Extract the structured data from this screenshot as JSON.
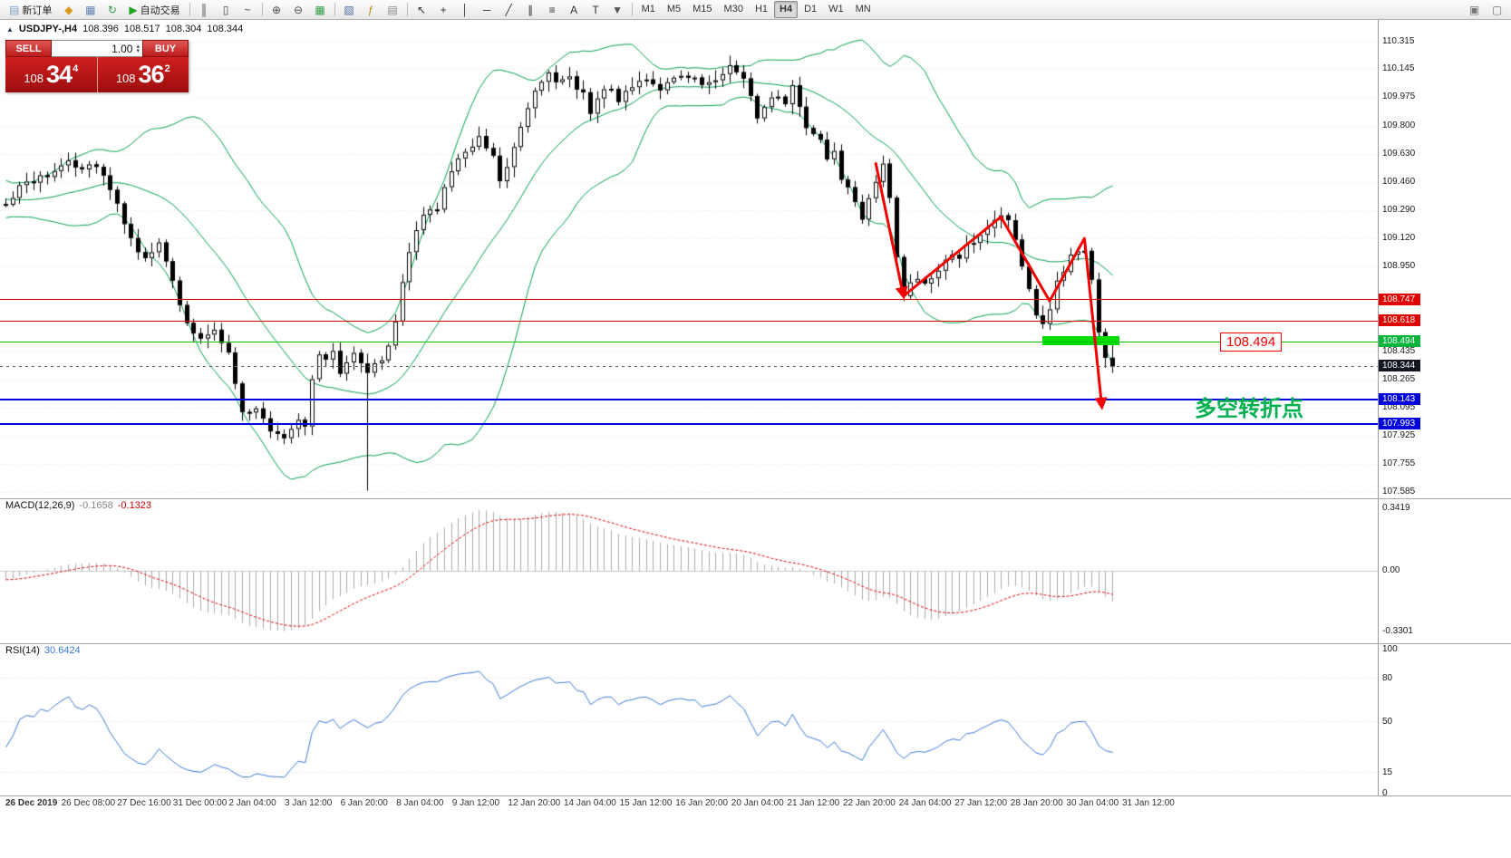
{
  "toolbar": {
    "items": [
      {
        "t": "btn",
        "name": "new-order-button",
        "glyph": "▤",
        "color": "#7aa0c8",
        "label": "新订单"
      },
      {
        "t": "ico",
        "name": "chart-window-icon",
        "glyph": "◆",
        "color": "#d99a1f"
      },
      {
        "t": "ico",
        "name": "profiles-icon",
        "glyph": "▦",
        "color": "#5f83b5"
      },
      {
        "t": "ico",
        "name": "refresh-icon",
        "glyph": "↻",
        "color": "#2f9e44"
      },
      {
        "t": "btn",
        "name": "auto-trading-button",
        "glyph": "▶",
        "color": "#21a121",
        "label": "自动交易"
      },
      {
        "t": "sep"
      },
      {
        "t": "ico",
        "name": "bar-chart-mode-icon",
        "glyph": "║",
        "color": "#4a4a4a"
      },
      {
        "t": "ico",
        "name": "candlestick-mode-icon",
        "glyph": "▯",
        "color": "#4a4a4a"
      },
      {
        "t": "ico",
        "name": "line-chart-mode-icon",
        "glyph": "~",
        "color": "#4a4a4a"
      },
      {
        "t": "sep"
      },
      {
        "t": "ico",
        "name": "zoom-in-icon",
        "glyph": "⊕",
        "color": "#4a4a4a"
      },
      {
        "t": "ico",
        "name": "zoom-out-icon",
        "glyph": "⊖",
        "color": "#4a4a4a"
      },
      {
        "t": "ico",
        "name": "tile-windows-icon",
        "glyph": "▦",
        "color": "#2f9e44"
      },
      {
        "t": "sep"
      },
      {
        "t": "ico",
        "name": "new-chart-icon",
        "glyph": "▧",
        "color": "#4a6fa5"
      },
      {
        "t": "ico",
        "name": "indicators-icon",
        "glyph": "ƒ",
        "color": "#b8860b"
      },
      {
        "t": "ico",
        "name": "templates-icon",
        "glyph": "▤",
        "color": "#8a8a8a"
      },
      {
        "t": "sep"
      },
      {
        "t": "ico",
        "name": "cursor-icon",
        "glyph": "↖",
        "color": "#333333"
      },
      {
        "t": "ico",
        "name": "crosshair-icon",
        "glyph": "+",
        "color": "#333333"
      },
      {
        "t": "ico",
        "name": "vertical-line-icon",
        "glyph": "│",
        "color": "#333333"
      },
      {
        "t": "ico",
        "name": "horizontal-line-icon",
        "glyph": "─",
        "color": "#333333"
      },
      {
        "t": "ico",
        "name": "trendline-icon",
        "glyph": "╱",
        "color": "#333333"
      },
      {
        "t": "ico",
        "name": "channel-icon",
        "glyph": "∥",
        "color": "#333333"
      },
      {
        "t": "ico",
        "name": "fibonacci-icon",
        "glyph": "≡",
        "color": "#333333"
      },
      {
        "t": "ico",
        "name": "text-icon",
        "glyph": "A",
        "color": "#333333"
      },
      {
        "t": "ico",
        "name": "label-icon",
        "glyph": "T",
        "color": "#333333"
      },
      {
        "t": "ico",
        "name": "shapes-icon",
        "glyph": "▼",
        "color": "#555555"
      },
      {
        "t": "sep"
      }
    ],
    "timeframes": [
      "M1",
      "M5",
      "M15",
      "M30",
      "H1",
      "H4",
      "D1",
      "W1",
      "MN"
    ],
    "active_timeframe": "H4",
    "right_icons": [
      {
        "name": "toolbar-windows-icon",
        "glyph": "▣",
        "color": "#777777"
      },
      {
        "name": "toolbar-fullscreen-icon",
        "glyph": "▢",
        "color": "#777777"
      }
    ]
  },
  "chart_header": {
    "symbol": "USDJPY-,H4",
    "open": "108.396",
    "high": "108.517",
    "low": "108.304",
    "close": "108.344"
  },
  "trade_panel": {
    "sell_label": "SELL",
    "buy_label": "BUY",
    "volume": "1.00",
    "sell_big": "108",
    "sell_pips": "34",
    "sell_sup": "4",
    "buy_big": "108",
    "buy_pips": "36",
    "buy_sup": "2"
  },
  "price_axis": {
    "labels": [
      "110.315",
      "110.145",
      "109.975",
      "109.800",
      "109.630",
      "109.460",
      "109.290",
      "109.120",
      "108.950",
      "108.435",
      "108.265",
      "108.095",
      "107.925",
      "107.755",
      "107.585"
    ],
    "tags": [
      {
        "value": "108.747",
        "color": "#e00000"
      },
      {
        "value": "108.618",
        "color": "#e00000"
      },
      {
        "value": "108.494",
        "color": "#00b43c"
      },
      {
        "value": "108.344",
        "color": "#14161f"
      },
      {
        "value": "108.143",
        "color": "#0000dc"
      },
      {
        "value": "107.993",
        "color": "#0000dc"
      }
    ]
  },
  "indicators": {
    "macd": {
      "name": "MACD(12,26,9)",
      "value_main": "-0.1658",
      "value_signal": "-0.1323",
      "axis": [
        "0.3419",
        "0.00",
        "-0.3301"
      ]
    },
    "rsi": {
      "name": "RSI(14)",
      "value": "30.6424",
      "axis": [
        "100",
        "80",
        "50",
        "15",
        "0"
      ]
    }
  },
  "time_axis": [
    "26 Dec 2019",
    "26 Dec 08:00",
    "27 Dec 16:00",
    "31 Dec 00:00",
    "2 Jan 04:00",
    "3 Jan 12:00",
    "6 Jan 20:00",
    "8 Jan 04:00",
    "9 Jan 12:00",
    "12 Jan 20:00",
    "14 Jan 04:00",
    "15 Jan 12:00",
    "16 Jan 20:00",
    "20 Jan 04:00",
    "21 Jan 12:00",
    "22 Jan 20:00",
    "24 Jan 04:00",
    "27 Jan 12:00",
    "28 Jan 20:00",
    "30 Jan 04:00",
    "31 Jan 12:00"
  ],
  "annotations": {
    "price_label": "108.494",
    "turning_point": "多空转折点"
  },
  "icons": {
    "spin_up": "▴",
    "spin_down": "▾",
    "chart_marker": "▲"
  },
  "chart_data": {
    "type": "candlestick",
    "symbol": "USDJPY",
    "period": "H4",
    "current_bar": {
      "open": 108.396,
      "high": 108.517,
      "low": 108.304,
      "close": 108.344
    },
    "visible_range": {
      "price_top": 110.315,
      "price_bottom": 107.585
    },
    "bars_visible": 160,
    "pre_anchors": [
      [
        -20,
        109.5
      ],
      [
        -15,
        109.4
      ],
      [
        -10,
        109.35
      ],
      [
        -5,
        109.28
      ],
      [
        -1,
        109.33
      ]
    ],
    "close_path_anchors": [
      [
        0,
        109.35
      ],
      [
        3,
        109.45
      ],
      [
        6,
        109.5
      ],
      [
        9,
        109.6
      ],
      [
        11,
        109.55
      ],
      [
        13,
        109.58
      ],
      [
        15,
        109.42
      ],
      [
        16,
        109.35
      ],
      [
        18,
        109.1
      ],
      [
        20,
        109.02
      ],
      [
        22,
        109.08
      ],
      [
        24,
        108.85
      ],
      [
        26,
        108.6
      ],
      [
        28,
        108.5
      ],
      [
        30,
        108.55
      ],
      [
        32,
        108.45
      ],
      [
        33,
        108.25
      ],
      [
        34,
        108.05
      ],
      [
        36,
        108.08
      ],
      [
        38,
        107.96
      ],
      [
        40,
        107.92
      ],
      [
        42,
        108.04
      ],
      [
        43,
        108.0
      ],
      [
        44,
        108.28
      ],
      [
        45,
        108.4
      ],
      [
        47,
        108.42
      ],
      [
        48,
        108.3
      ],
      [
        50,
        108.45
      ],
      [
        52,
        108.32
      ],
      [
        54,
        108.38
      ],
      [
        55,
        108.45
      ],
      [
        56,
        108.62
      ],
      [
        57,
        108.85
      ],
      [
        58,
        109.05
      ],
      [
        60,
        109.25
      ],
      [
        62,
        109.32
      ],
      [
        64,
        109.52
      ],
      [
        66,
        109.65
      ],
      [
        68,
        109.75
      ],
      [
        70,
        109.62
      ],
      [
        71,
        109.48
      ],
      [
        72,
        109.56
      ],
      [
        74,
        109.82
      ],
      [
        76,
        110.02
      ],
      [
        78,
        110.15
      ],
      [
        79,
        110.05
      ],
      [
        81,
        110.08
      ],
      [
        83,
        110.0
      ],
      [
        84,
        109.9
      ],
      [
        86,
        110.04
      ],
      [
        88,
        109.96
      ],
      [
        90,
        110.06
      ],
      [
        92,
        110.1
      ],
      [
        94,
        110.0
      ],
      [
        96,
        110.08
      ],
      [
        98,
        110.12
      ],
      [
        100,
        110.05
      ],
      [
        102,
        110.1
      ],
      [
        104,
        110.16
      ],
      [
        106,
        110.1
      ],
      [
        107,
        109.97
      ],
      [
        108,
        109.86
      ],
      [
        110,
        110.0
      ],
      [
        112,
        109.96
      ],
      [
        113,
        110.03
      ],
      [
        114,
        109.9
      ],
      [
        115,
        109.8
      ],
      [
        117,
        109.72
      ],
      [
        118,
        109.6
      ],
      [
        119,
        109.66
      ],
      [
        120,
        109.5
      ],
      [
        122,
        109.36
      ],
      [
        123,
        109.26
      ],
      [
        125,
        109.48
      ],
      [
        126,
        109.58
      ],
      [
        127,
        109.38
      ],
      [
        128,
        108.98
      ],
      [
        129,
        108.78
      ],
      [
        131,
        108.88
      ],
      [
        133,
        108.86
      ],
      [
        135,
        108.98
      ],
      [
        137,
        109.02
      ],
      [
        139,
        109.1
      ],
      [
        141,
        109.18
      ],
      [
        143,
        109.28
      ],
      [
        144,
        109.22
      ],
      [
        145,
        109.1
      ],
      [
        146,
        108.95
      ],
      [
        148,
        108.66
      ],
      [
        149,
        108.58
      ],
      [
        150,
        108.7
      ],
      [
        151,
        108.85
      ],
      [
        153,
        109.02
      ],
      [
        155,
        109.06
      ],
      [
        156,
        108.88
      ],
      [
        157,
        108.55
      ],
      [
        158,
        108.396
      ],
      [
        159,
        108.344
      ]
    ],
    "low_spikes": [
      {
        "bar": 52,
        "low": 107.59
      }
    ],
    "candles": {
      "up_fill": "#ffffff",
      "down_fill": "#000000",
      "border": "#000000"
    },
    "indicators": {
      "bollinger": {
        "period": 20,
        "deviation": 2,
        "color": "#00A050"
      },
      "macd": {
        "fast": 12,
        "slow": 26,
        "signal": 9,
        "histogram_color": "#ababab",
        "signal_color": "#e00000"
      },
      "rsi": {
        "period": 14,
        "color": "#3a7ad9"
      }
    },
    "hlines": [
      {
        "price": 108.747,
        "color": "#e00000",
        "thickness": 1
      },
      {
        "price": 108.618,
        "color": "#e00000",
        "thickness": 1
      },
      {
        "price": 108.494,
        "color": "#00c000",
        "thickness": 1
      },
      {
        "price": 108.143,
        "color": "#0000e0",
        "thickness": 2
      },
      {
        "price": 107.993,
        "color": "#0000e0",
        "thickness": 2
      }
    ],
    "bid_line": {
      "price": 108.344
    },
    "support_zone": {
      "from_bar": 149,
      "to_bar": 160,
      "price": 108.5,
      "color": "#00dd00",
      "thickness_px": 10
    },
    "arrow": {
      "color": "#f40000",
      "points_bar_price": [
        [
          125,
          109.58
        ],
        [
          129,
          108.77
        ],
        [
          143,
          109.25
        ],
        [
          150,
          108.74
        ],
        [
          155,
          109.12
        ],
        [
          157.5,
          108.1
        ]
      ]
    }
  }
}
